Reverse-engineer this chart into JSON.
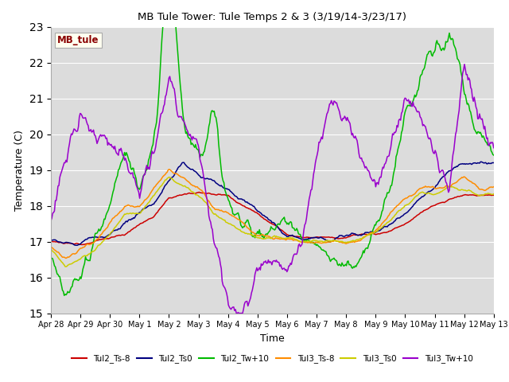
{
  "title": "MB Tule Tower: Tule Temps 2 & 3 (3/19/14-3/23/17)",
  "xlabel": "Time",
  "ylabel": "Temperature (C)",
  "ylim": [
    15.0,
    23.0
  ],
  "yticks": [
    15.0,
    16.0,
    17.0,
    18.0,
    19.0,
    20.0,
    21.0,
    22.0,
    23.0
  ],
  "bg_color": "#dcdcdc",
  "legend_label": "MB_tule",
  "legend_text_color": "#8b0000",
  "legend_box_facecolor": "#fffff0",
  "legend_box_edgecolor": "#aaaaaa",
  "line_colors": {
    "Tul2_Ts-8": "#cc0000",
    "Tul2_Ts0": "#000080",
    "Tul2_Tw+10": "#00bb00",
    "Tul3_Ts-8": "#ff8c00",
    "Tul3_Ts0": "#cccc00",
    "Tul3_Tw+10": "#9900cc"
  },
  "xtick_labels": [
    "Apr 28",
    "Apr 29",
    "Apr 30",
    "May 1",
    "May 2",
    "May 3",
    "May 4",
    "May 5",
    "May 6",
    "May 7",
    "May 8",
    "May 9",
    "May 10",
    "May 11",
    "May 12",
    "May 13"
  ]
}
